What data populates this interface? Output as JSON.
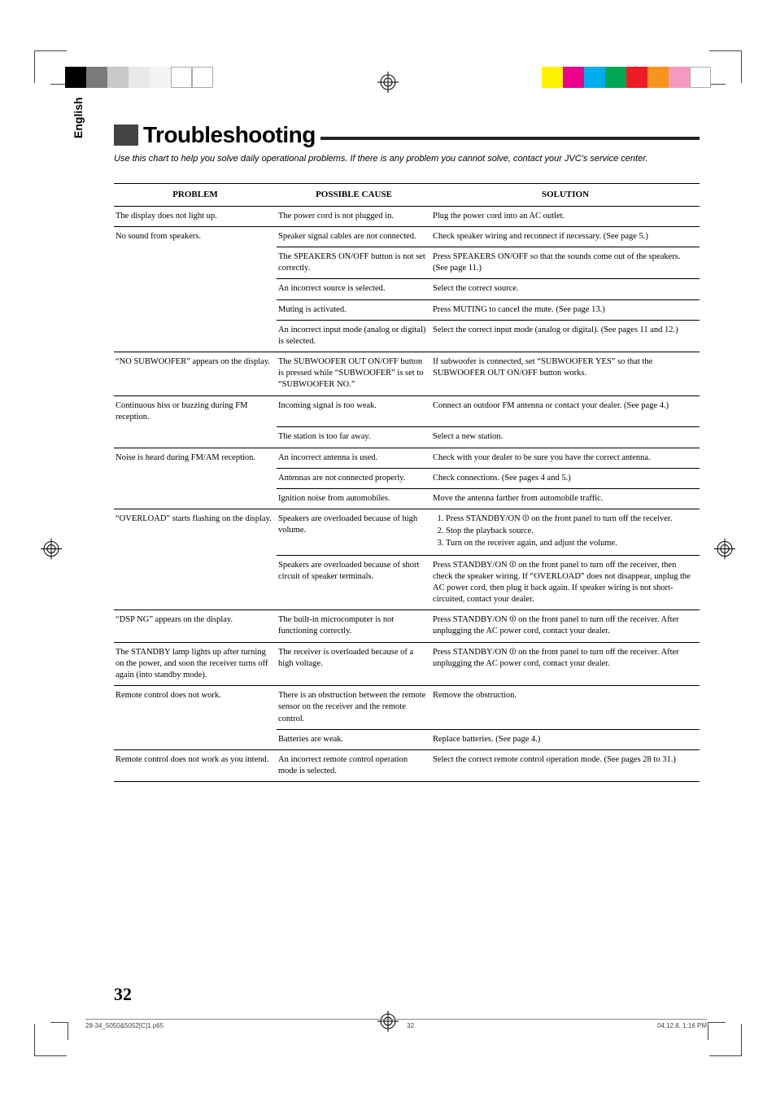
{
  "sidebar_label": "English",
  "title": "Troubleshooting",
  "intro": "Use this chart to help you solve daily operational problems. If there is any problem you cannot solve, contact your JVC's service center.",
  "columns": {
    "problem": "PROBLEM",
    "cause": "POSSIBLE CAUSE",
    "solution": "SOLUTION"
  },
  "rows": [
    {
      "problem": "The display does not light up.",
      "cause": "The power cord is not plugged in.",
      "solution": "Plug the power cord into an AC outlet."
    },
    {
      "problem": "No sound from speakers.",
      "cause": "Speaker signal cables are not connected.",
      "solution": "Check speaker wiring and reconnect if necessary. (See page 5.)",
      "problem_merge": true
    },
    {
      "problem": "",
      "cause": "The SPEAKERS ON/OFF button is not set correctly.",
      "solution": "Press SPEAKERS ON/OFF so that the sounds come out of the speakers. (See page 11.)",
      "problem_merge": true
    },
    {
      "problem": "",
      "cause": "An incorrect source is selected.",
      "solution": "Select the correct source.",
      "problem_merge": true
    },
    {
      "problem": "",
      "cause": "Muting is activated.",
      "solution": "Press MUTING to cancel the mute. (See page 13.)",
      "problem_merge": true
    },
    {
      "problem": "",
      "cause": "An incorrect input mode (analog or digital) is selected.",
      "solution": "Select the correct input mode (analog or digital). (See pages 11 and 12.)"
    },
    {
      "problem": "“NO SUBWOOFER” appears on the display.",
      "cause": "The SUBWOOFER OUT ON/OFF button is pressed while “SUBWOOFER” is set to “SUBWOOFER NO.”",
      "solution": "If subwoofer is connected, set “SUBWOOFER YES” so that the SUBWOOFER OUT ON/OFF button works."
    },
    {
      "problem": "Continuous hiss or buzzing during FM reception.",
      "cause": "Incoming signal is too weak.",
      "solution": "Connect an outdoor FM antenna or contact your dealer. (See page 4.)",
      "problem_merge": true
    },
    {
      "problem": "",
      "cause": "The station is too far away.",
      "solution": "Select a new station."
    },
    {
      "problem": "Noise is heard during FM/AM reception.",
      "cause": "An incorrect antenna is used.",
      "solution": "Check with your dealer to be sure you have the correct antenna.",
      "problem_merge": true
    },
    {
      "problem": "",
      "cause": "Antennas are not connected properly.",
      "solution": "Check connections. (See pages 4 and 5.)",
      "problem_merge": true
    },
    {
      "problem": "",
      "cause": "Ignition noise from automobiles.",
      "solution": "Move the antenna farther from automobile traffic."
    },
    {
      "problem": "“OVERLOAD” starts flashing on the display.",
      "cause": "Speakers are overloaded because of high volume.",
      "solution_list": [
        "Press STANDBY/ON ⏼ on the front panel to turn off the receiver.",
        "Stop the playback source.",
        "Turn on the receiver again, and adjust the volume."
      ],
      "problem_merge": true
    },
    {
      "problem": "",
      "cause": "Speakers are overloaded because of short circuit of speaker terminals.",
      "solution": "Press STANDBY/ON ⏼ on the front panel to turn off the receiver, then check the speaker wiring. If “OVERLOAD” does not disappear, unplug the AC power cord, then plug it back again. If speaker wiring is not short-circuited, contact your dealer."
    },
    {
      "problem": "“DSP NG” appears on the display.",
      "cause": "The built-in microcomputer is not functioning correctly.",
      "solution": "Press STANDBY/ON ⏼ on the front panel to turn off the receiver. After unplugging the AC power cord, contact your dealer."
    },
    {
      "problem": "The STANDBY lamp lights up after turning on the power, and soon the receiver turns off again (into standby mode).",
      "cause": "The receiver is overloaded because of a high voltage.",
      "solution": "Press STANDBY/ON ⏼ on the front panel to turn off the receiver. After unplugging the AC power cord, contact your dealer."
    },
    {
      "problem": "Remote control does not work.",
      "cause": "There is an obstruction between the remote sensor on the receiver and the remote control.",
      "solution": "Remove the obstruction.",
      "problem_merge": true
    },
    {
      "problem": "",
      "cause": "Batteries are weak.",
      "solution": "Replace batteries. (See page 4.)"
    },
    {
      "problem": "Remote control does not work as you intend.",
      "cause": "An incorrect remote control operation mode is selected.",
      "solution": "Select the correct remote control operation mode. (See pages 28 to 31.)"
    }
  ],
  "page_number": "32",
  "footer": {
    "file": "28-34_5050&5052[C]1.p65",
    "page": "32",
    "timestamp": "04.12.8, 1:16 PM"
  },
  "colorbars": {
    "left": [
      "#000000",
      "#7a7a7a",
      "#c9c9c9",
      "#e9e9e9",
      "#f4f4f4",
      "#ffffff",
      "#ffffff"
    ],
    "right": [
      "#fff200",
      "#ec008c",
      "#00aeef",
      "#00a651",
      "#ed1c24",
      "#f7941d",
      "#f49ac1",
      "#ffffff"
    ]
  }
}
